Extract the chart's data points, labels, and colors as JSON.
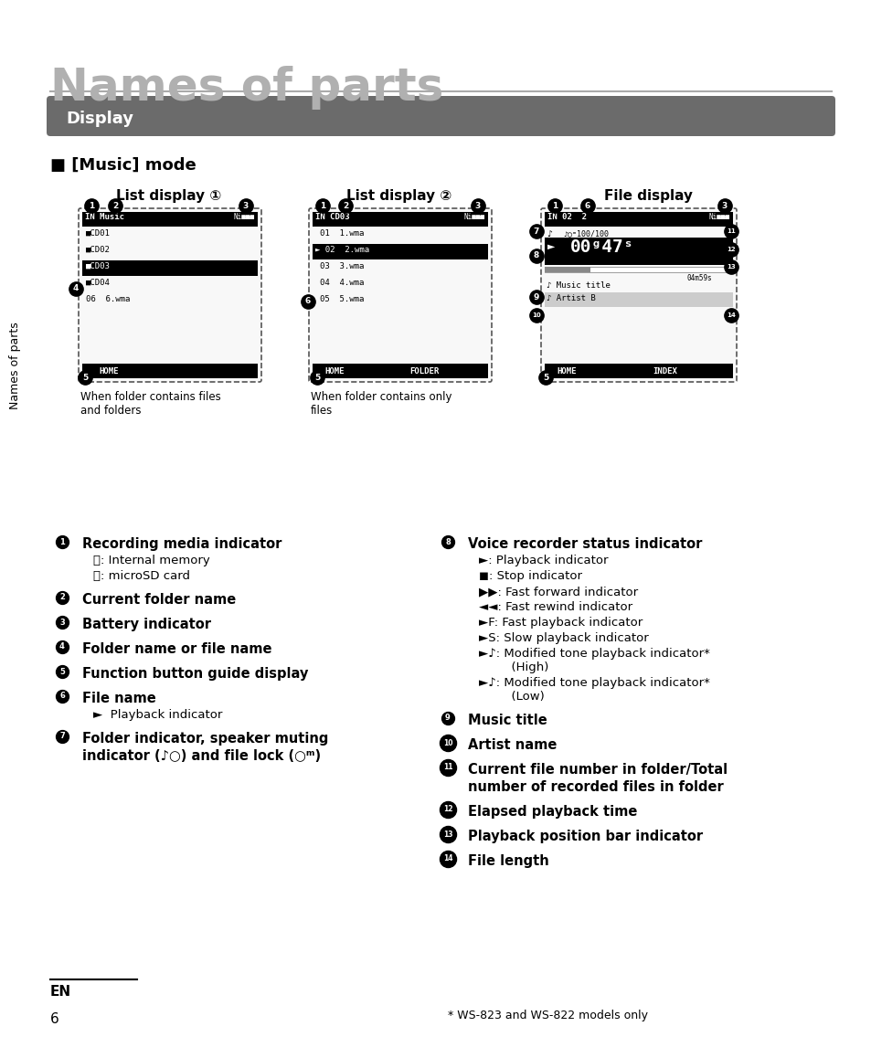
{
  "title": "Names of parts",
  "title_color": "#b0b0b0",
  "title_fontsize": 36,
  "section_label": "Display",
  "section_bg": "#6b6b6b",
  "section_text_color": "#ffffff",
  "music_mode_label": "■ [Music] mode",
  "sidebar_text": "Names of parts",
  "bg_color": "#ffffff",
  "display_headers": [
    "List display ①",
    "List display ②",
    "File display"
  ],
  "footnote": "* WS-823 and WS-822 models only",
  "list1_caption": "When folder contains files\nand folders",
  "list2_caption": "When folder contains only\nfiles"
}
